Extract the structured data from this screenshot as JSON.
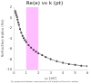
{
  "chart_data": {
    "type": "scatter",
    "title": "Re(e) vs k (pt)",
    "caption": "Fig. agreement between measurements and theoretical formula is evident",
    "xlabel": "ω [eV]",
    "ylabel": "Refractive index (Re)",
    "xlim": [
      0.0,
      6.0
    ],
    "ylim": [
      -10.0,
      2.0
    ],
    "xticks": [
      0,
      1,
      2,
      3,
      4,
      5,
      6
    ],
    "yticks": [
      -10,
      -8,
      -6,
      -4,
      -2,
      0,
      2
    ],
    "grid": false,
    "spans": [
      {
        "x0": 1.0,
        "x1": 2.0,
        "color": "#FF88FF"
      }
    ],
    "series": [
      {
        "type": "line",
        "color": "#888888",
        "marker": "none",
        "line_style": "solid",
        "x": [
          0.05,
          0.1,
          0.15,
          0.2,
          0.25,
          0.3,
          0.35,
          0.4,
          0.5,
          0.6,
          0.7,
          0.8,
          0.9,
          1.0,
          1.2,
          1.4,
          1.6,
          1.8,
          2.0,
          2.3,
          2.6,
          3.0,
          3.5,
          4.0,
          4.5,
          5.0,
          5.5,
          6.0
        ],
        "values": [
          1.5,
          1.2,
          0.9,
          0.5,
          0.1,
          -0.4,
          -0.9,
          -1.4,
          -2.2,
          -2.9,
          -3.5,
          -3.95,
          -4.35,
          -4.7,
          -5.3,
          -5.8,
          -6.2,
          -6.55,
          -6.85,
          -7.2,
          -7.6,
          -8.0,
          -8.4,
          -8.7,
          -8.95,
          -9.1,
          -9.25,
          -9.35
        ]
      },
      {
        "type": "scatter",
        "color": "black",
        "marker": "circle",
        "x": [
          0.1,
          0.15,
          0.2,
          0.25,
          0.3,
          0.35,
          0.4,
          0.5,
          0.6,
          0.7,
          0.8,
          0.9,
          1.0,
          1.2,
          1.4,
          1.6,
          1.8,
          2.0,
          2.3,
          2.6,
          3.0,
          3.5,
          4.0,
          4.5,
          5.0,
          5.5,
          6.0
        ],
        "values": [
          1.2,
          0.85,
          0.5,
          0.1,
          -0.4,
          -0.9,
          -1.4,
          -2.2,
          -2.9,
          -3.5,
          -3.95,
          -4.35,
          -4.7,
          -5.3,
          -5.8,
          -6.2,
          -6.55,
          -6.85,
          -7.2,
          -7.6,
          -8.0,
          -8.4,
          -8.7,
          -8.95,
          -9.1,
          -9.25,
          -9.35
        ]
      }
    ]
  }
}
